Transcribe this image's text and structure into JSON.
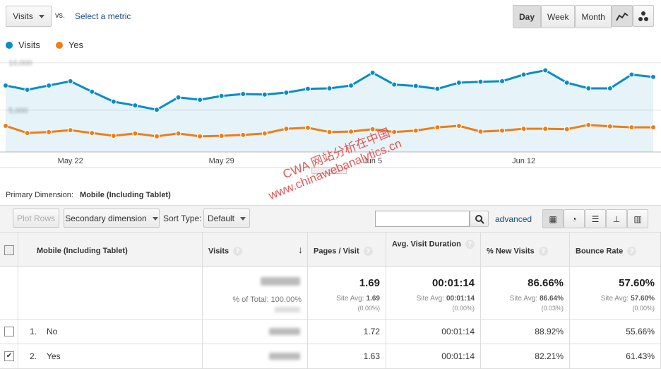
{
  "controls": {
    "metric": "Visits",
    "vs": "vs.",
    "select_metric": "Select a metric",
    "periods": [
      "Day",
      "Week",
      "Month"
    ]
  },
  "chart_data": {
    "type": "line",
    "categories": [
      null,
      null,
      null,
      "May 22",
      null,
      null,
      null,
      null,
      null,
      null,
      "May 29",
      null,
      null,
      null,
      null,
      null,
      null,
      "Jun 5",
      null,
      null,
      null,
      null,
      null,
      null,
      "Jun 12",
      null,
      null,
      null,
      null,
      null,
      null
    ],
    "series": [
      {
        "name": "Visits",
        "color": "#058dc7",
        "values": [
          7600,
          7150,
          7600,
          8050,
          6950,
          5900,
          5500,
          5050,
          6350,
          6100,
          6500,
          6700,
          6650,
          6850,
          7250,
          7300,
          7600,
          8950,
          7700,
          7550,
          7250,
          7900,
          8000,
          8050,
          8750,
          9200,
          7900,
          7300,
          7300,
          8750,
          8500
        ]
      },
      {
        "name": "Yes",
        "color": "#ed7e17",
        "values": [
          3350,
          2600,
          2700,
          2900,
          2600,
          2300,
          2550,
          2250,
          2550,
          2250,
          2300,
          2400,
          2550,
          3050,
          3150,
          2700,
          2750,
          3000,
          2700,
          2850,
          3200,
          3350,
          2750,
          2850,
          3050,
          3050,
          3000,
          3450,
          3300,
          3200,
          3200
        ]
      }
    ],
    "ylim": [
      600,
      10500
    ],
    "yticks": [
      {
        "value": 5000,
        "label": "5,000"
      },
      {
        "value": 10000,
        "label": "10,000"
      }
    ],
    "grid": true,
    "area": true
  },
  "primary_dimension": {
    "label": "Primary Dimension:",
    "value": "Mobile (Including Tablet)"
  },
  "table_controls": {
    "plot_rows": "Plot Rows",
    "secondary": "Secondary dimension",
    "sort_type": "Sort Type:",
    "sort_default": "Default",
    "advanced": "advanced"
  },
  "table": {
    "columns": [
      "Mobile (Including Tablet)",
      "Visits",
      "Pages / Visit",
      "Avg. Visit Duration",
      "% New Visits",
      "Bounce Rate"
    ],
    "totals": {
      "pct_of_total": "% of Total: 100.00%",
      "cells": [
        {
          "value": "1.69",
          "site_avg_label": "Site Avg:",
          "site_avg": "1.69",
          "diff": "(0.00%)"
        },
        {
          "value": "00:01:14",
          "site_avg_label": "Site Avg:",
          "site_avg": "00:01:14",
          "diff": "(0.00%)"
        },
        {
          "value": "86.66%",
          "site_avg_label": "Site Avg:",
          "site_avg": "86.64%",
          "diff": "(0.03%)"
        },
        {
          "value": "57.60%",
          "site_avg_label": "Site Avg:",
          "site_avg": "57.60%",
          "diff": "(0.00%)"
        }
      ]
    },
    "rows": [
      {
        "index": "1.",
        "name": "No",
        "checked": false,
        "cells": [
          "1.72",
          "00:01:14",
          "88.92%",
          "55.66%"
        ]
      },
      {
        "index": "2.",
        "name": "Yes",
        "checked": true,
        "cells": [
          "1.63",
          "00:01:14",
          "82.21%",
          "61.43%"
        ]
      }
    ]
  },
  "watermark": [
    "CWA 网站分析在中国",
    "www.chinawebanalytics.cn"
  ]
}
